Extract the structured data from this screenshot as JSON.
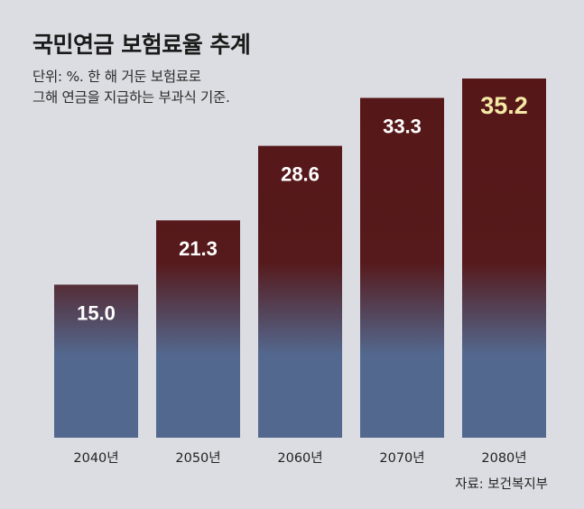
{
  "chart_data": {
    "type": "bar",
    "title": "국민연금 보험료율 추계",
    "subtitle_lines": [
      "단위: %. 한 해 거둔 보험료로",
      "그해 연금을 지급하는 부과식 기준."
    ],
    "categories": [
      "2040년",
      "2050년",
      "2060년",
      "2070년",
      "2080년"
    ],
    "values": [
      15.0,
      21.3,
      28.6,
      33.3,
      35.2
    ],
    "value_labels": [
      "15.0",
      "21.3",
      "28.6",
      "33.3",
      "35.2"
    ],
    "highlight_index": 4,
    "ylim": [
      0,
      35.2
    ],
    "grid": false,
    "legend": "none",
    "colors": {
      "bar_top": "#561515",
      "bar_bottom": "#53688e",
      "label": "#ffffff",
      "highlight_label": "#f5e9a6"
    }
  },
  "source": "자료: 보건복지부"
}
